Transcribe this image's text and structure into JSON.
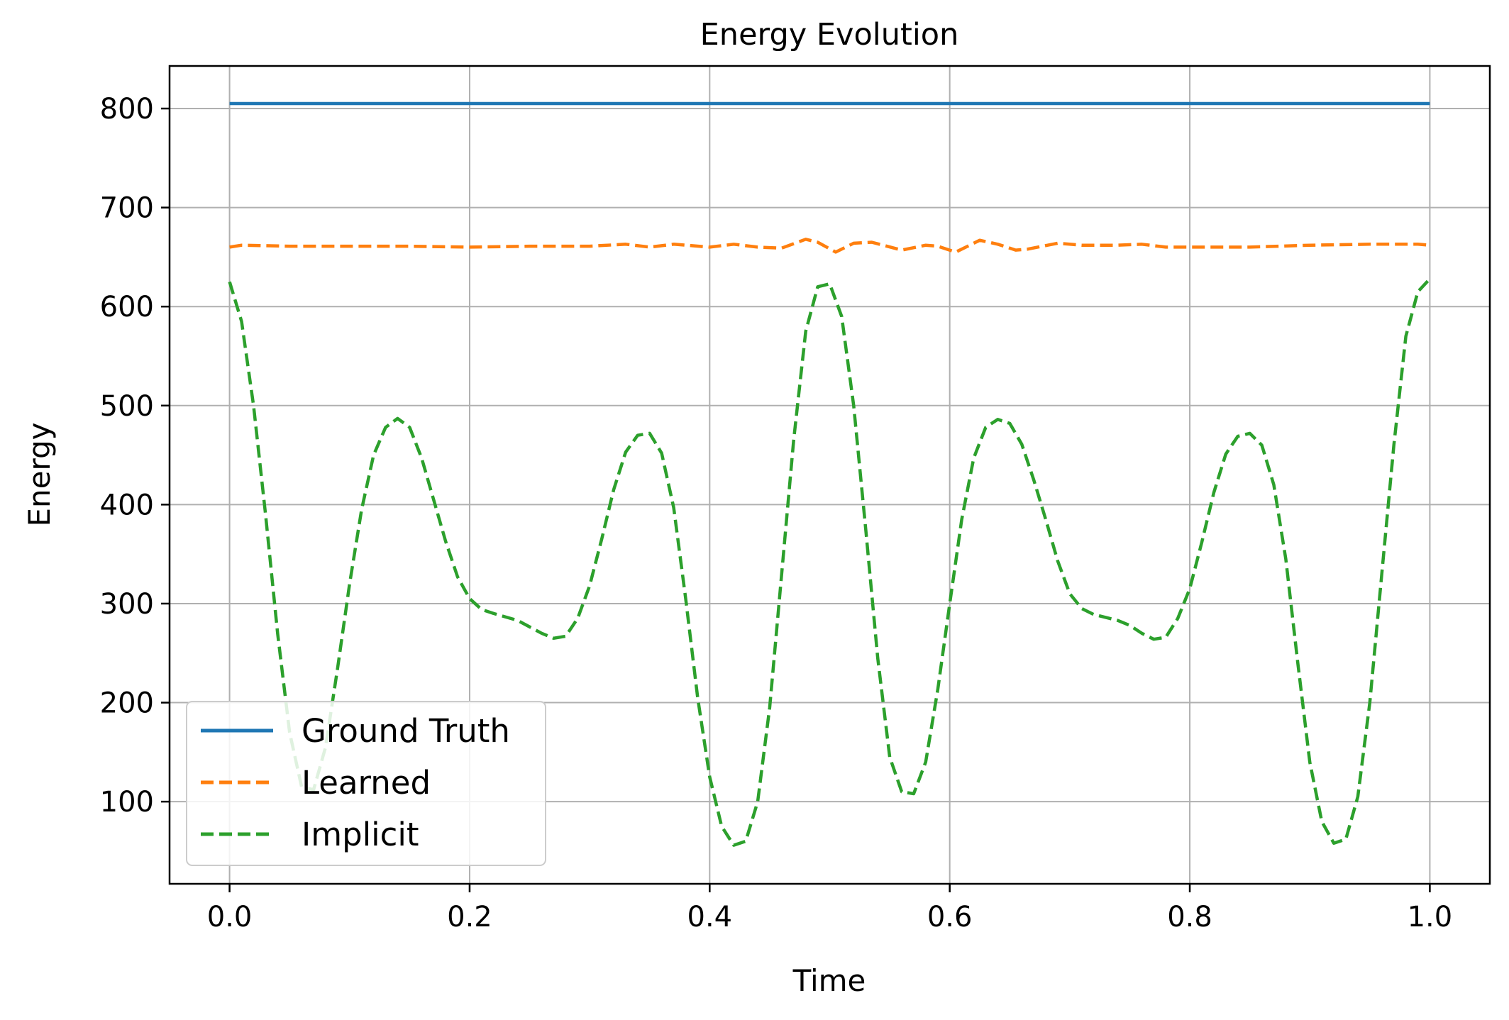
{
  "chart_data": {
    "type": "line",
    "title": "Energy Evolution",
    "xlabel": "Time",
    "ylabel": "Energy",
    "xlim": [
      -0.05,
      1.05
    ],
    "ylim": [
      17,
      843
    ],
    "x_ticks": [
      0.0,
      0.2,
      0.4,
      0.6,
      0.8,
      1.0
    ],
    "x_tick_labels": [
      "0.0",
      "0.2",
      "0.4",
      "0.6",
      "0.8",
      "1.0"
    ],
    "y_ticks": [
      100,
      200,
      300,
      400,
      500,
      600,
      700,
      800
    ],
    "y_tick_labels": [
      "100",
      "200",
      "300",
      "400",
      "500",
      "600",
      "700",
      "800"
    ],
    "grid": true,
    "legend_position": "lower-left",
    "series": [
      {
        "name": "Ground Truth",
        "color": "#1f77b4",
        "style": "solid",
        "points": [
          [
            0.0,
            805
          ],
          [
            1.0,
            805
          ]
        ]
      },
      {
        "name": "Learned",
        "color": "#ff7f0e",
        "style": "dashed",
        "points": [
          [
            0.0,
            660
          ],
          [
            0.01,
            662
          ],
          [
            0.05,
            661
          ],
          [
            0.1,
            661
          ],
          [
            0.15,
            661
          ],
          [
            0.2,
            660
          ],
          [
            0.25,
            661
          ],
          [
            0.3,
            661
          ],
          [
            0.33,
            663
          ],
          [
            0.35,
            660
          ],
          [
            0.37,
            663
          ],
          [
            0.4,
            660
          ],
          [
            0.42,
            663
          ],
          [
            0.44,
            660
          ],
          [
            0.46,
            659
          ],
          [
            0.48,
            668
          ],
          [
            0.49,
            665
          ],
          [
            0.505,
            655
          ],
          [
            0.52,
            664
          ],
          [
            0.535,
            665
          ],
          [
            0.56,
            657
          ],
          [
            0.58,
            662
          ],
          [
            0.59,
            661
          ],
          [
            0.605,
            655
          ],
          [
            0.625,
            667
          ],
          [
            0.64,
            663
          ],
          [
            0.655,
            657
          ],
          [
            0.665,
            658
          ],
          [
            0.69,
            664
          ],
          [
            0.71,
            662
          ],
          [
            0.74,
            662
          ],
          [
            0.76,
            663
          ],
          [
            0.78,
            660
          ],
          [
            0.8,
            660
          ],
          [
            0.85,
            660
          ],
          [
            0.9,
            662
          ],
          [
            0.95,
            663
          ],
          [
            0.99,
            663
          ],
          [
            1.0,
            662
          ]
        ]
      },
      {
        "name": "Implicit",
        "color": "#2ca02c",
        "style": "dashed",
        "points": [
          [
            0.0,
            625
          ],
          [
            0.01,
            585
          ],
          [
            0.02,
            500
          ],
          [
            0.03,
            390
          ],
          [
            0.04,
            270
          ],
          [
            0.05,
            170
          ],
          [
            0.06,
            115
          ],
          [
            0.07,
            112
          ],
          [
            0.08,
            155
          ],
          [
            0.09,
            235
          ],
          [
            0.1,
            320
          ],
          [
            0.11,
            395
          ],
          [
            0.12,
            450
          ],
          [
            0.13,
            478
          ],
          [
            0.14,
            487
          ],
          [
            0.15,
            478
          ],
          [
            0.16,
            447
          ],
          [
            0.17,
            405
          ],
          [
            0.18,
            363
          ],
          [
            0.19,
            327
          ],
          [
            0.2,
            305
          ],
          [
            0.21,
            294
          ],
          [
            0.22,
            290
          ],
          [
            0.24,
            283
          ],
          [
            0.26,
            270
          ],
          [
            0.27,
            265
          ],
          [
            0.28,
            267
          ],
          [
            0.29,
            285
          ],
          [
            0.3,
            318
          ],
          [
            0.31,
            365
          ],
          [
            0.32,
            415
          ],
          [
            0.33,
            453
          ],
          [
            0.34,
            470
          ],
          [
            0.35,
            472
          ],
          [
            0.36,
            452
          ],
          [
            0.37,
            397
          ],
          [
            0.38,
            305
          ],
          [
            0.39,
            205
          ],
          [
            0.4,
            125
          ],
          [
            0.41,
            75
          ],
          [
            0.42,
            56
          ],
          [
            0.43,
            60
          ],
          [
            0.44,
            100
          ],
          [
            0.45,
            195
          ],
          [
            0.46,
            330
          ],
          [
            0.47,
            465
          ],
          [
            0.48,
            575
          ],
          [
            0.49,
            620
          ],
          [
            0.5,
            623
          ],
          [
            0.51,
            590
          ],
          [
            0.52,
            500
          ],
          [
            0.53,
            375
          ],
          [
            0.54,
            245
          ],
          [
            0.55,
            145
          ],
          [
            0.56,
            110
          ],
          [
            0.57,
            108
          ],
          [
            0.58,
            140
          ],
          [
            0.59,
            213
          ],
          [
            0.6,
            300
          ],
          [
            0.61,
            385
          ],
          [
            0.62,
            447
          ],
          [
            0.63,
            478
          ],
          [
            0.64,
            486
          ],
          [
            0.65,
            482
          ],
          [
            0.66,
            461
          ],
          [
            0.67,
            425
          ],
          [
            0.68,
            385
          ],
          [
            0.69,
            343
          ],
          [
            0.7,
            310
          ],
          [
            0.71,
            295
          ],
          [
            0.72,
            289
          ],
          [
            0.74,
            283
          ],
          [
            0.75,
            278
          ],
          [
            0.76,
            270
          ],
          [
            0.77,
            264
          ],
          [
            0.78,
            266
          ],
          [
            0.79,
            285
          ],
          [
            0.8,
            315
          ],
          [
            0.81,
            362
          ],
          [
            0.82,
            412
          ],
          [
            0.83,
            451
          ],
          [
            0.84,
            469
          ],
          [
            0.85,
            472
          ],
          [
            0.86,
            460
          ],
          [
            0.87,
            420
          ],
          [
            0.88,
            345
          ],
          [
            0.89,
            240
          ],
          [
            0.9,
            140
          ],
          [
            0.91,
            80
          ],
          [
            0.92,
            58
          ],
          [
            0.93,
            62
          ],
          [
            0.94,
            105
          ],
          [
            0.95,
            200
          ],
          [
            0.96,
            330
          ],
          [
            0.97,
            460
          ],
          [
            0.98,
            570
          ],
          [
            0.99,
            615
          ],
          [
            1.0,
            628
          ]
        ]
      }
    ]
  }
}
